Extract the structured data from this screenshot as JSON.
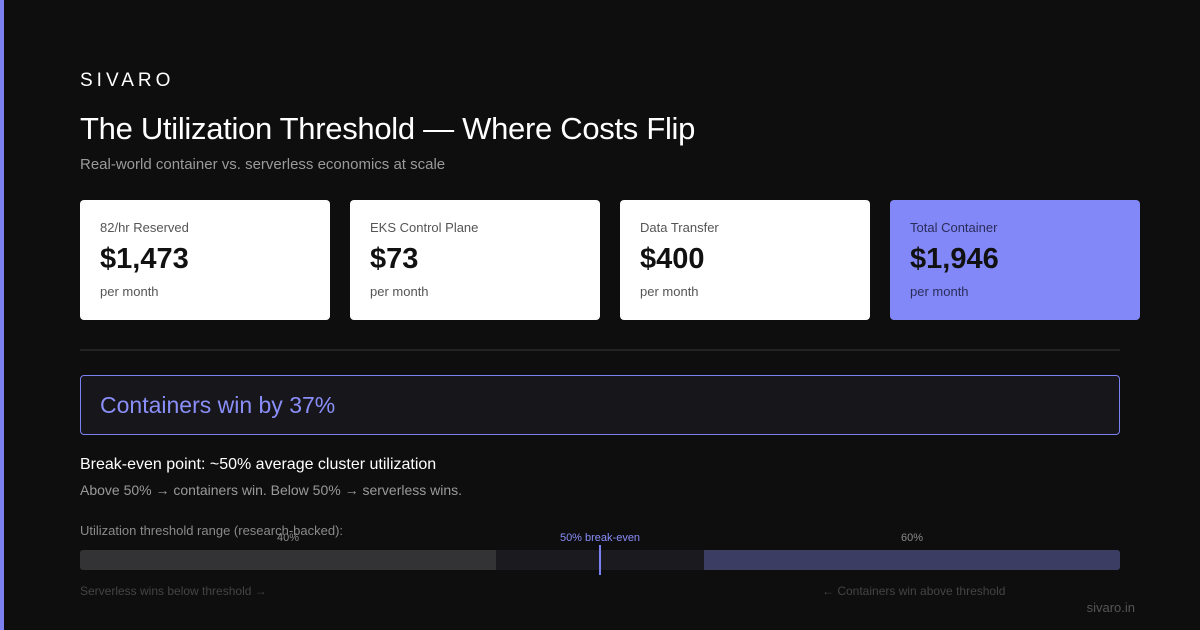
{
  "brand": "SIVARO",
  "title": "The Utilization Threshold — Where Costs Flip",
  "subtitle": "Real-world container vs. serverless economics at scale",
  "cards": [
    {
      "label": "82/hr Reserved",
      "value": "$1,473",
      "unit": "per month"
    },
    {
      "label": "EKS Control Plane",
      "value": "$73",
      "unit": "per month"
    },
    {
      "label": "Data Transfer",
      "value": "$400",
      "unit": "per month"
    },
    {
      "label": "Total Container",
      "value": "$1,946",
      "unit": "per month"
    }
  ],
  "callout": "Containers win by 37%",
  "breakeven": {
    "heading": "Break-even point: ~50% average cluster utilization",
    "note": "Above 50% → containers win. Below 50% → serverless wins."
  },
  "range": {
    "label": "Utilization threshold range (research-backed):",
    "low": "40%",
    "mid": "50% break-even",
    "high": "60%",
    "left_note": "Serverless wins below threshold →",
    "right_note": "← Containers win above threshold"
  },
  "footer": "sivaro.in"
}
